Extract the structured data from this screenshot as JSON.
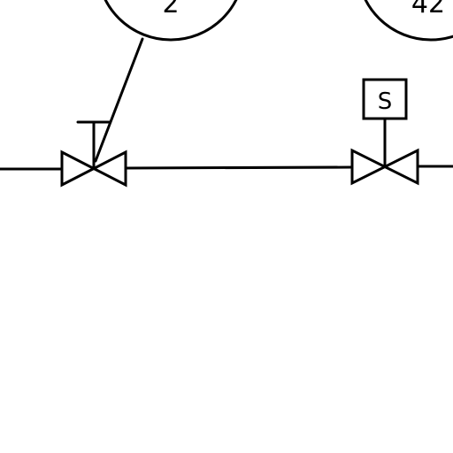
{
  "diagram": {
    "instruments": [
      {
        "tag": "2"
      },
      {
        "tag": "42"
      }
    ],
    "solenoid": {
      "label": "S"
    }
  },
  "colors": {
    "line": "#000000",
    "background": "#ffffff"
  }
}
